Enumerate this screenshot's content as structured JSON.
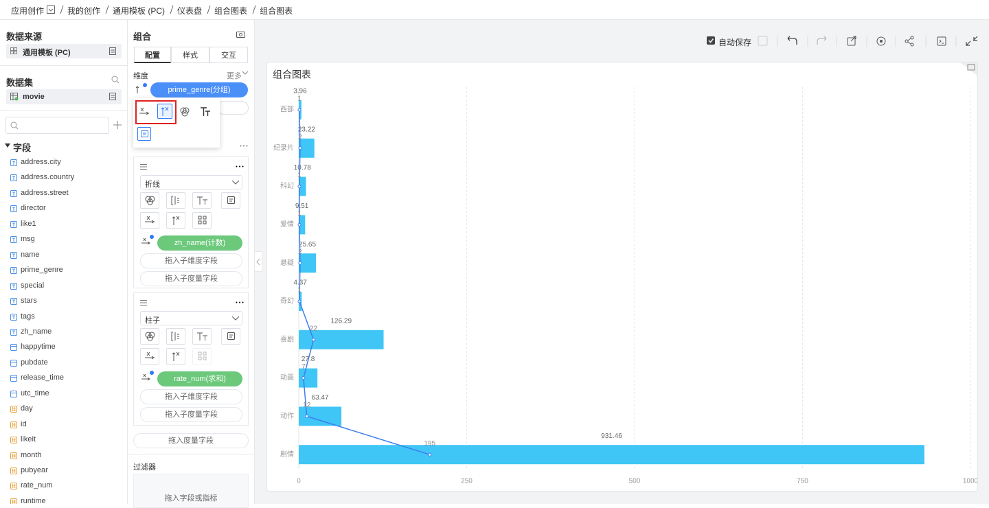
{
  "breadcrumb": [
    "应用创作",
    "我的创作",
    "通用模板 (PC)",
    "仪表盘",
    "组合图表",
    "组合图表"
  ],
  "sidebar": {
    "datasource_title": "数据来源",
    "datasource": "通用模板 (PC)",
    "dataset_title": "数据集",
    "dataset": "movie",
    "fields_title": "字段",
    "text_fields": [
      "address.city",
      "address.country",
      "address.street",
      "director",
      "like1",
      "msg",
      "name",
      "prime_genre",
      "special",
      "stars",
      "tags",
      "zh_name"
    ],
    "date_fields": [
      "happytime",
      "pubdate",
      "release_time",
      "utc_time"
    ],
    "number_fields": [
      "day",
      "id",
      "likeit",
      "month",
      "pubyear",
      "rate_num",
      "runtime"
    ]
  },
  "config": {
    "title": "组合",
    "tabs": [
      "配置",
      "样式",
      "交互"
    ],
    "dimension_label": "维度",
    "more": "更多",
    "dimension_field": "prime_genre(分组)",
    "layers": [
      {
        "type": "折线",
        "measure": "zh_name(计数)",
        "sub_dimension": "拖入子维度字段",
        "sub_measure": "拖入子度量字段"
      },
      {
        "type": "柱子",
        "measure": "rate_num(求和)",
        "sub_dimension": "拖入子维度字段",
        "sub_measure": "拖入子度量字段"
      }
    ],
    "measure_drop": "拖入度量字段",
    "filter_title": "过滤器",
    "filter_drop": "拖入字段或指标"
  },
  "toolbar": {
    "autosave": "自动保存"
  },
  "chart_data": {
    "type": "combo",
    "orientation": "horizontal",
    "title": "组合图表",
    "categories": [
      "西部",
      "纪录片",
      "科幻",
      "爱情",
      "悬疑",
      "奇幻",
      "喜剧",
      "动画",
      "动作",
      "剧情"
    ],
    "series": [
      {
        "type": "bar",
        "color": "#3fc6f6",
        "values": [
          3.96,
          23.22,
          10.78,
          9.51,
          25.65,
          4.37,
          126.29,
          27.8,
          63.47,
          931.46
        ]
      },
      {
        "type": "line",
        "color": "#3d7ef0",
        "values": [
          1,
          2,
          1,
          1,
          2,
          1,
          22,
          7,
          12,
          195
        ]
      }
    ],
    "xlim": [
      0,
      1000
    ],
    "xticks": [
      0,
      250,
      500,
      750,
      1000
    ],
    "grid": true
  }
}
